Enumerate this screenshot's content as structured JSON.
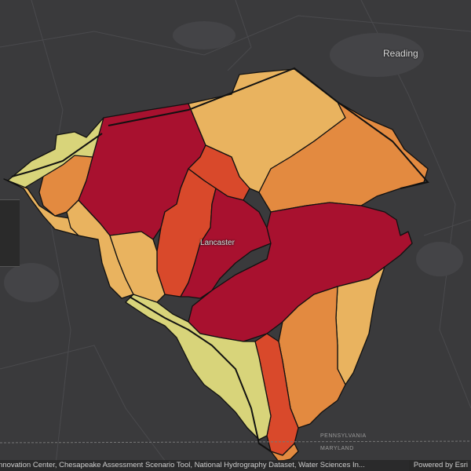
{
  "map": {
    "labels": {
      "reading": "Reading",
      "lancaster": "Lancaster",
      "state_pa": "PENNSYLVANIA",
      "state_md": "MARYLAND"
    },
    "colors": {
      "basemap": "#3a3a3c",
      "class_1": "#a8112f",
      "class_2": "#d9492b",
      "class_3": "#e38a40",
      "class_4": "#e9b35f",
      "class_5": "#d8d47a",
      "boundary": "#111111"
    }
  },
  "attribution": {
    "text": "nnovation Center, Chesapeake Assessment Scenario Tool, National Hydrography Dataset, Water Sciences In...",
    "powered_by": "Powered by Esri"
  }
}
